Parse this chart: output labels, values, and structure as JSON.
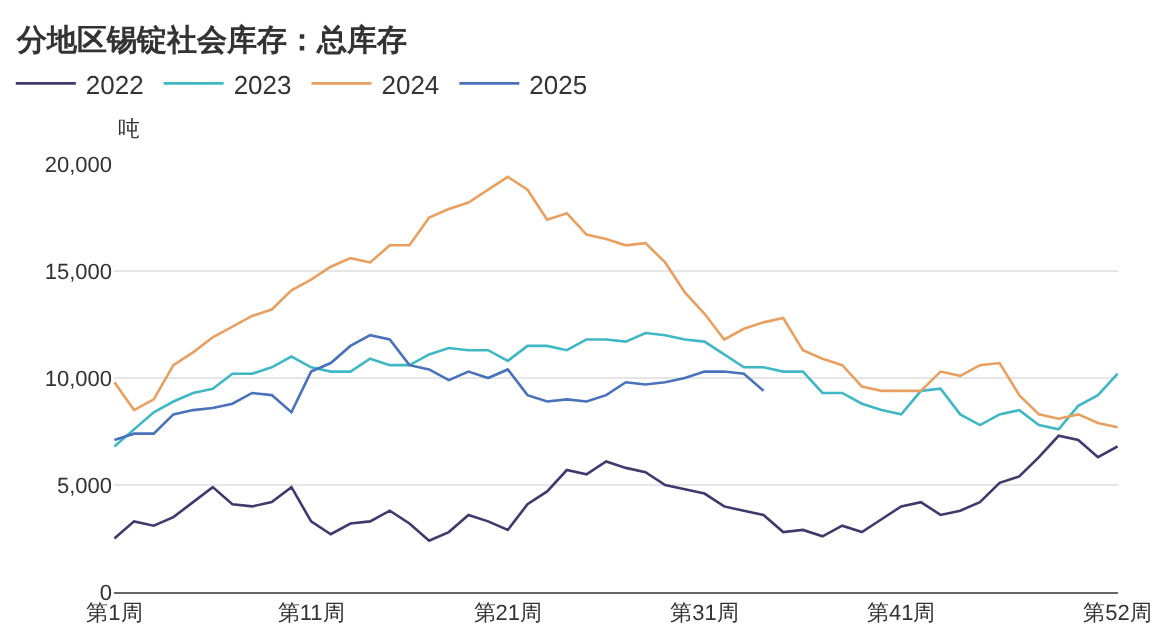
{
  "chart_data": {
    "type": "line",
    "title": "分地区锡锭社会库存：总库存",
    "ylabel": "吨",
    "categories": [
      "第1周",
      null,
      null,
      null,
      null,
      null,
      null,
      null,
      null,
      null,
      "第11周",
      null,
      null,
      null,
      null,
      null,
      null,
      null,
      null,
      null,
      "第21周",
      null,
      null,
      null,
      null,
      null,
      null,
      null,
      null,
      null,
      "第31周",
      null,
      null,
      null,
      null,
      null,
      null,
      null,
      null,
      null,
      "第41周",
      null,
      null,
      null,
      null,
      null,
      null,
      null,
      null,
      null,
      null,
      "第52周"
    ],
    "series": [
      {
        "name": "2022",
        "color": "#3d3b6b",
        "values": [
          2500,
          3300,
          3100,
          3500,
          4200,
          4900,
          4100,
          4000,
          4200,
          4900,
          3300,
          2700,
          3200,
          3300,
          3800,
          3200,
          2400,
          2800,
          3600,
          3300,
          2900,
          4100,
          4700,
          5700,
          5500,
          6100,
          5800,
          5600,
          5000,
          4800,
          4600,
          4000,
          3800,
          3600,
          2800,
          2900,
          2600,
          3100,
          2800,
          3400,
          4000,
          4200,
          3600,
          3800,
          4200,
          5100,
          5400,
          6300,
          7300,
          7100,
          6300,
          6800
        ]
      },
      {
        "name": "2023",
        "color": "#3fb8c4",
        "values": [
          6800,
          7600,
          8400,
          8900,
          9300,
          9500,
          10200,
          10200,
          10500,
          11000,
          10500,
          10300,
          10300,
          10900,
          10600,
          10600,
          11100,
          11400,
          11300,
          11300,
          10800,
          11500,
          11500,
          11300,
          11800,
          11800,
          11700,
          12100,
          12000,
          11800,
          11700,
          11100,
          10500,
          10500,
          10300,
          10300,
          9300,
          9300,
          8800,
          8500,
          8300,
          9400,
          9500,
          8300,
          7800,
          8300,
          8500,
          7800,
          7600,
          8700,
          9200,
          10200
        ]
      },
      {
        "name": "2024",
        "color": "#e8a060",
        "values": [
          9800,
          8500,
          9000,
          10600,
          11200,
          11900,
          12400,
          12900,
          13200,
          14100,
          14600,
          15200,
          15600,
          15400,
          16200,
          16200,
          17500,
          17900,
          18200,
          18800,
          19400,
          18800,
          17400,
          17700,
          16700,
          16500,
          16200,
          16300,
          15400,
          14000,
          13000,
          11800,
          12300,
          12600,
          12800,
          11300,
          10900,
          10600,
          9600,
          9400,
          9400,
          9400,
          10300,
          10100,
          10600,
          10700,
          9200,
          8300,
          8100,
          8300,
          7900,
          7700
        ]
      },
      {
        "name": "2025",
        "color": "#4a72b8",
        "values": [
          7100,
          7400,
          7400,
          8300,
          8500,
          8600,
          8800,
          9300,
          9200,
          8400,
          10300,
          10700,
          11500,
          12000,
          11800,
          10600,
          10400,
          9900,
          10300,
          10000,
          10400,
          9200,
          8900,
          9000,
          8900,
          9200,
          9800,
          9700,
          9800,
          10000,
          10300,
          10300,
          10200,
          9400,
          null,
          null,
          null,
          null,
          null,
          null,
          null,
          null,
          null,
          null,
          null,
          null,
          null,
          null,
          null,
          null,
          null,
          null
        ]
      }
    ],
    "ylim": [
      0,
      20000
    ],
    "yticks": [
      0,
      {
        "value": 5000,
        "label": "5,000"
      },
      {
        "value": 10000,
        "label": "10,000"
      },
      {
        "value": 15000,
        "label": "15,000"
      },
      {
        "value": 20000,
        "label": "20,000"
      }
    ],
    "grid": "y",
    "legend": "top left",
    "marker": "none",
    "line_style": "solid"
  }
}
